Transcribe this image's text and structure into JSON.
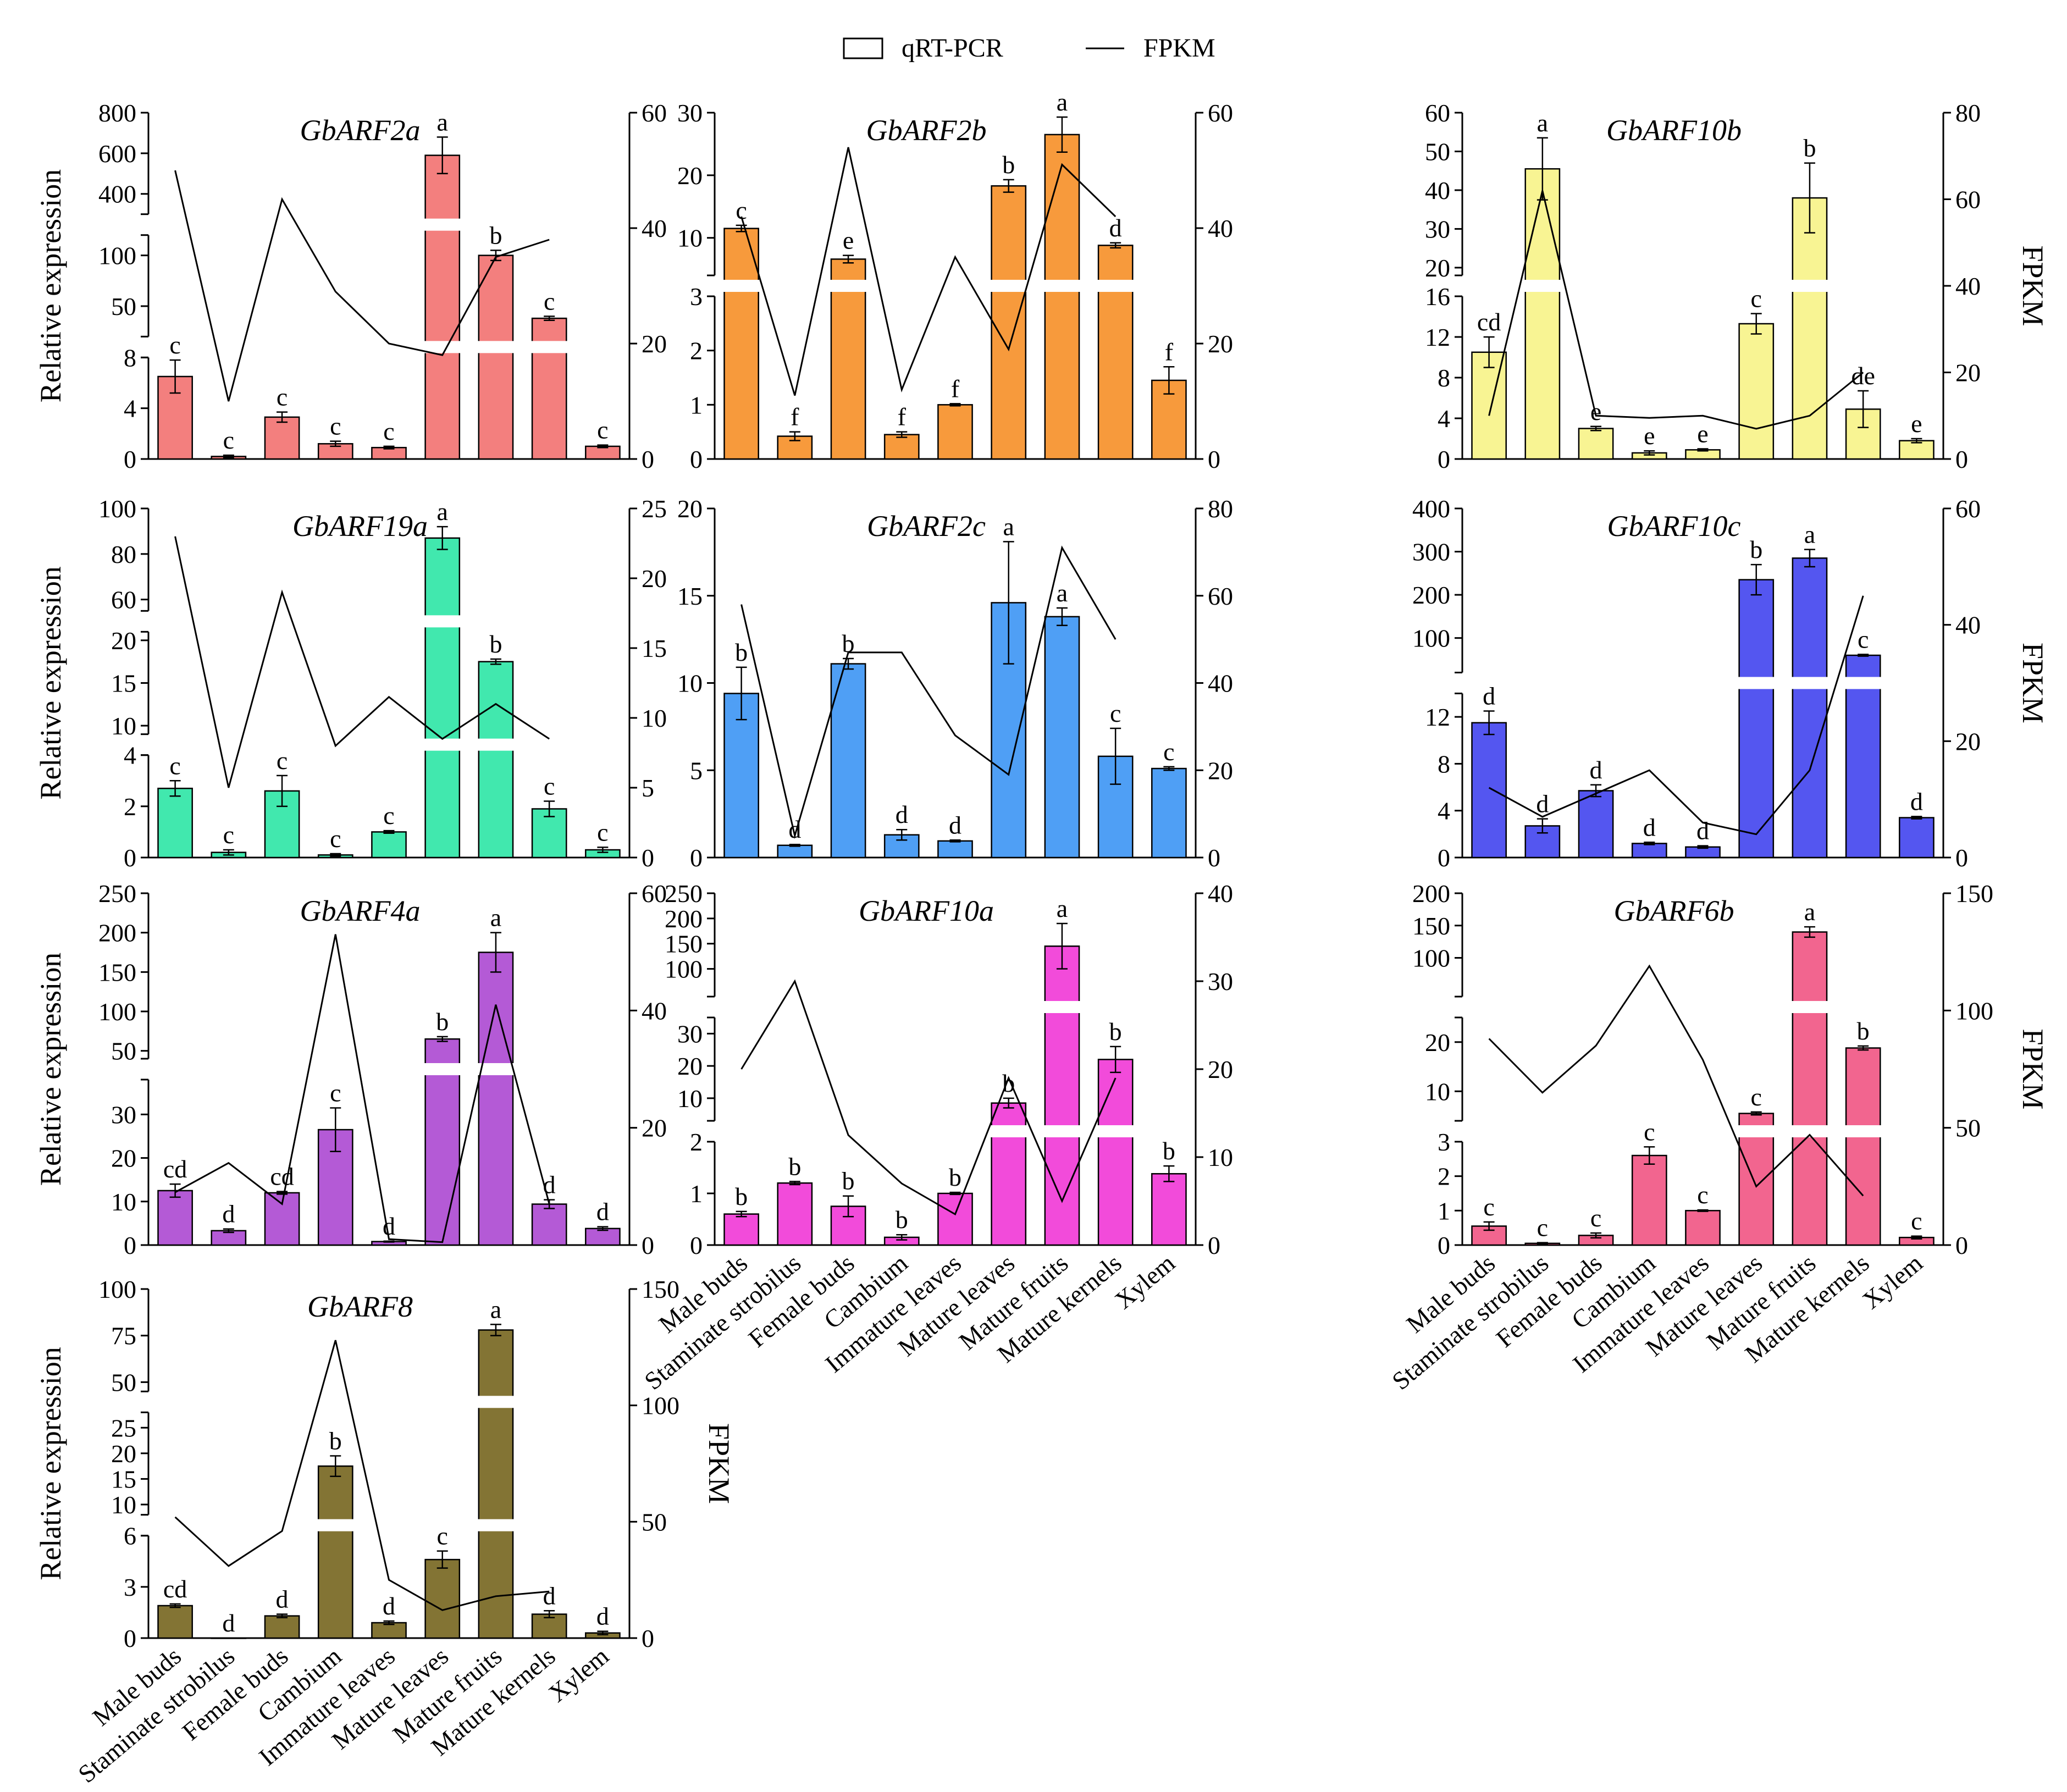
{
  "legend": {
    "bar_label": "qRT-PCR",
    "line_label": "FPKM"
  },
  "colors": {
    "GbARF2a": "#F37F7E",
    "GbARF2b": "#F79A3C",
    "GbARF10b": "#F8F493",
    "GbARF19a": "#41E8AE",
    "GbARF2c": "#4F9FF5",
    "GbARF10c": "#5456F0",
    "GbARF4a": "#B45AD6",
    "GbARF10a": "#F24BDA",
    "GbARF6b": "#F2658F",
    "GbARF8": "#837434"
  },
  "chart_data": [
    {
      "type": "bar",
      "title": "GbARF2a",
      "ylabel": "Relative expression",
      "y2label": "",
      "categories": [
        "Male buds",
        "Staminate strobilus",
        "Female buds",
        "Cambium",
        "Immature leaves",
        "Mature leaves",
        "Mature fruits",
        "Mature kernels",
        "Xylem"
      ],
      "values": [
        6.5,
        0.2,
        3.3,
        1.2,
        0.9,
        590,
        100,
        38,
        1.0
      ],
      "errors": [
        1.3,
        0.1,
        0.4,
        0.2,
        0.1,
        90,
        5,
        2,
        0.1
      ],
      "letters": [
        "c",
        "c",
        "c",
        "c",
        "c",
        "a",
        "b",
        "c",
        "c"
      ],
      "fpkm": [
        50,
        10,
        45,
        29,
        20,
        18,
        35,
        38,
        null
      ],
      "y2lim": [
        0,
        60
      ],
      "y2ticks": [
        0,
        20,
        40,
        60
      ],
      "segments": [
        {
          "lim": [
            0,
            8
          ],
          "ticks": [
            0,
            4,
            8
          ]
        },
        {
          "lim": [
            20,
            120
          ],
          "ticks": [
            50,
            100
          ]
        },
        {
          "lim": [
            300,
            800
          ],
          "ticks": [
            400,
            600,
            800
          ]
        }
      ]
    },
    {
      "type": "bar",
      "title": "GbARF2b",
      "ylabel": "",
      "y2label": "",
      "categories": [
        "Male buds",
        "Staminate strobilus",
        "Female buds",
        "Cambium",
        "Immature leaves",
        "Mature leaves",
        "Mature fruits",
        "Mature kernels",
        "Xylem"
      ],
      "values": [
        11.5,
        0.42,
        6.6,
        0.45,
        1.0,
        18.3,
        26.5,
        8.8,
        1.45
      ],
      "errors": [
        0.5,
        0.08,
        0.6,
        0.05,
        0.02,
        1.0,
        2.8,
        0.4,
        0.25
      ],
      "letters": [
        "c",
        "f",
        "e",
        "f",
        "f",
        "b",
        "a",
        "d",
        "f"
      ],
      "fpkm": [
        42,
        11,
        54,
        12,
        35,
        19,
        51,
        42,
        null
      ],
      "y2lim": [
        0,
        60
      ],
      "y2ticks": [
        0,
        20,
        40,
        60
      ],
      "segments": [
        {
          "lim": [
            0,
            3
          ],
          "ticks": [
            0,
            1,
            2,
            3
          ]
        },
        {
          "lim": [
            4,
            30
          ],
          "ticks": [
            10,
            20,
            30
          ]
        }
      ]
    },
    {
      "type": "bar",
      "title": "GbARF10b",
      "ylabel": "",
      "y2label": "FPKM",
      "categories": [
        "Male buds",
        "Staminate strobilus",
        "Female buds",
        "Cambium",
        "Immature leaves",
        "Mature leaves",
        "Mature fruits",
        "Mature kernels",
        "Xylem"
      ],
      "values": [
        10.5,
        45.5,
        3.0,
        0.6,
        0.9,
        13.3,
        38,
        4.9,
        1.8
      ],
      "errors": [
        1.5,
        8,
        0.2,
        0.2,
        0.1,
        1.0,
        9,
        1.8,
        0.2
      ],
      "letters": [
        "cd",
        "a",
        "e",
        "e",
        "e",
        "c",
        "b",
        "de",
        "e"
      ],
      "fpkm": [
        10,
        62,
        10,
        9.5,
        10,
        7,
        10,
        20,
        null
      ],
      "y2lim": [
        0,
        80
      ],
      "y2ticks": [
        0,
        20,
        40,
        60,
        80
      ],
      "segments": [
        {
          "lim": [
            0,
            16
          ],
          "ticks": [
            0,
            4,
            8,
            12,
            16
          ]
        },
        {
          "lim": [
            18,
            60
          ],
          "ticks": [
            20,
            30,
            40,
            50,
            60
          ]
        }
      ]
    },
    {
      "type": "bar",
      "title": "GbARF19a",
      "ylabel": "Relative expression",
      "y2label": "",
      "categories": [
        "Male buds",
        "Staminate strobilus",
        "Female buds",
        "Cambium",
        "Immature leaves",
        "Mature leaves",
        "Mature fruits",
        "Mature kernels",
        "Xylem"
      ],
      "values": [
        2.7,
        0.2,
        2.6,
        0.1,
        1.0,
        87,
        17.5,
        1.9,
        0.3
      ],
      "errors": [
        0.3,
        0.1,
        0.6,
        0.05,
        0.05,
        5,
        0.3,
        0.3,
        0.1
      ],
      "letters": [
        "c",
        "c",
        "c",
        "c",
        "c",
        "a",
        "b",
        "c",
        "c"
      ],
      "fpkm": [
        23,
        5,
        19,
        8,
        11.5,
        8.5,
        11,
        8.5,
        null
      ],
      "y2lim": [
        0,
        25
      ],
      "y2ticks": [
        0,
        5,
        10,
        15,
        20,
        25
      ],
      "segments": [
        {
          "lim": [
            0,
            4
          ],
          "ticks": [
            0,
            2,
            4
          ]
        },
        {
          "lim": [
            9,
            21
          ],
          "ticks": [
            10,
            15,
            20
          ]
        },
        {
          "lim": [
            55,
            100
          ],
          "ticks": [
            60,
            80,
            100
          ]
        }
      ]
    },
    {
      "type": "bar",
      "title": "GbARF2c",
      "ylabel": "",
      "y2label": "",
      "categories": [
        "Male buds",
        "Staminate strobilus",
        "Female buds",
        "Cambium",
        "Immature leaves",
        "Mature leaves",
        "Mature fruits",
        "Mature kernels",
        "Xylem"
      ],
      "values": [
        9.4,
        0.7,
        11.1,
        1.3,
        0.95,
        14.6,
        13.8,
        5.8,
        5.1
      ],
      "errors": [
        1.5,
        0.05,
        0.3,
        0.3,
        0.05,
        3.5,
        0.5,
        1.6,
        0.1
      ],
      "letters": [
        "b",
        "d",
        "b",
        "d",
        "d",
        "a",
        "a",
        "c",
        "c"
      ],
      "fpkm": [
        58,
        5,
        47,
        47,
        28,
        19,
        71,
        50,
        null
      ],
      "y2lim": [
        0,
        80
      ],
      "y2ticks": [
        0,
        20,
        40,
        60,
        80
      ],
      "segments": [
        {
          "lim": [
            0,
            20
          ],
          "ticks": [
            0,
            5,
            10,
            15,
            20
          ]
        }
      ]
    },
    {
      "type": "bar",
      "title": "GbARF10c",
      "ylabel": "",
      "y2label": "FPKM",
      "categories": [
        "Male buds",
        "Staminate strobilus",
        "Female buds",
        "Cambium",
        "Immature leaves",
        "Mature leaves",
        "Mature fruits",
        "Mature kernels",
        "Xylem"
      ],
      "values": [
        11.5,
        2.7,
        5.7,
        1.2,
        0.9,
        235,
        285,
        60,
        3.4
      ],
      "errors": [
        1.0,
        0.6,
        0.5,
        0.1,
        0.1,
        35,
        20,
        2,
        0.1
      ],
      "letters": [
        "d",
        "d",
        "d",
        "d",
        "d",
        "b",
        "a",
        "c",
        "d"
      ],
      "fpkm": [
        12,
        7,
        11,
        15,
        6,
        4,
        15,
        45,
        null
      ],
      "y2lim": [
        0,
        60
      ],
      "y2ticks": [
        0,
        20,
        40,
        60
      ],
      "segments": [
        {
          "lim": [
            0,
            14
          ],
          "ticks": [
            0,
            4,
            8,
            12
          ]
        },
        {
          "lim": [
            20,
            400
          ],
          "ticks": [
            100,
            200,
            300,
            400
          ]
        }
      ]
    },
    {
      "type": "bar",
      "title": "GbARF4a",
      "ylabel": "Relative expression",
      "y2label": "",
      "categories": [
        "Male buds",
        "Staminate strobilus",
        "Female buds",
        "Cambium",
        "Immature leaves",
        "Mature leaves",
        "Mature fruits",
        "Mature kernels",
        "Xylem"
      ],
      "values": [
        12.5,
        3.3,
        12.0,
        26.5,
        0.8,
        65,
        175,
        9.4,
        3.8
      ],
      "errors": [
        1.5,
        0.4,
        0.3,
        5,
        0.1,
        3,
        25,
        1.0,
        0.4
      ],
      "letters": [
        "cd",
        "d",
        "cd",
        "c",
        "d",
        "b",
        "a",
        "d",
        "d"
      ],
      "fpkm": [
        9,
        14,
        7,
        53,
        1,
        0.5,
        41,
        7,
        null
      ],
      "y2lim": [
        0,
        60
      ],
      "y2ticks": [
        0,
        20,
        40,
        60
      ],
      "segments": [
        {
          "lim": [
            0,
            38
          ],
          "ticks": [
            0,
            10,
            20,
            30
          ]
        },
        {
          "lim": [
            40,
            250
          ],
          "ticks": [
            50,
            100,
            150,
            200,
            250
          ]
        }
      ]
    },
    {
      "type": "bar",
      "title": "GbARF10a",
      "ylabel": "",
      "y2label": "",
      "categories": [
        "Male buds",
        "Staminate strobilus",
        "Female buds",
        "Cambium",
        "Immature leaves",
        "Mature leaves",
        "Mature fruits",
        "Mature kernels",
        "Xylem"
      ],
      "values": [
        0.6,
        1.2,
        0.75,
        0.15,
        1.0,
        8.5,
        145,
        22,
        1.38
      ],
      "errors": [
        0.05,
        0.03,
        0.2,
        0.05,
        0.02,
        1.5,
        45,
        4,
        0.15
      ],
      "letters": [
        "b",
        "b",
        "b",
        "b",
        "b",
        "b",
        "a",
        "b",
        "b"
      ],
      "fpkm": [
        20,
        30,
        12.5,
        7,
        3.5,
        19,
        5,
        19,
        null
      ],
      "y2lim": [
        0,
        40
      ],
      "y2ticks": [
        0,
        10,
        20,
        30,
        40
      ],
      "segments": [
        {
          "lim": [
            0,
            2
          ],
          "ticks": [
            0,
            1,
            2
          ]
        },
        {
          "lim": [
            3,
            35
          ],
          "ticks": [
            10,
            20,
            30
          ]
        },
        {
          "lim": [
            45,
            250
          ],
          "ticks": [
            100,
            150,
            200,
            250
          ]
        }
      ]
    },
    {
      "type": "bar",
      "title": "GbARF6b",
      "ylabel": "",
      "y2label": "FPKM",
      "categories": [
        "Male buds",
        "Staminate strobilus",
        "Female buds",
        "Cambium",
        "Immature leaves",
        "Mature leaves",
        "Mature fruits",
        "Mature kernels",
        "Xylem"
      ],
      "values": [
        0.55,
        0.05,
        0.28,
        2.6,
        1.0,
        5.5,
        140,
        18.8,
        0.22
      ],
      "errors": [
        0.12,
        0.02,
        0.07,
        0.25,
        0.02,
        0.3,
        8,
        0.4,
        0.04
      ],
      "letters": [
        "c",
        "c",
        "c",
        "c",
        "c",
        "c",
        "a",
        "b",
        "c"
      ],
      "fpkm": [
        88,
        65,
        85,
        119,
        79,
        25,
        47,
        21,
        null
      ],
      "y2lim": [
        0,
        150
      ],
      "y2ticks": [
        0,
        50,
        100,
        150
      ],
      "segments": [
        {
          "lim": [
            0,
            3
          ],
          "ticks": [
            0,
            1,
            2,
            3
          ]
        },
        {
          "lim": [
            4,
            25
          ],
          "ticks": [
            10,
            20
          ]
        },
        {
          "lim": [
            40,
            200
          ],
          "ticks": [
            100,
            150,
            200
          ]
        }
      ]
    },
    {
      "type": "bar",
      "title": "GbARF8",
      "ylabel": "Relative expression",
      "y2label": "FPKM",
      "categories": [
        "Male buds",
        "Staminate strobilus",
        "Female buds",
        "Cambium",
        "Immature leaves",
        "Mature leaves",
        "Mature fruits",
        "Mature kernels",
        "Xylem"
      ],
      "values": [
        1.9,
        0.0,
        1.3,
        17.5,
        0.9,
        4.6,
        78,
        1.4,
        0.3
      ],
      "errors": [
        0.1,
        0.0,
        0.1,
        2.0,
        0.1,
        0.5,
        3,
        0.2,
        0.1
      ],
      "letters": [
        "cd",
        "d",
        "d",
        "b",
        "d",
        "c",
        "a",
        "d",
        "d"
      ],
      "fpkm": [
        52,
        31,
        46,
        128,
        25,
        12,
        18,
        20,
        null
      ],
      "y2lim": [
        0,
        150
      ],
      "y2ticks": [
        0,
        50,
        100,
        150
      ],
      "segments": [
        {
          "lim": [
            0,
            6
          ],
          "ticks": [
            0,
            3,
            6
          ]
        },
        {
          "lim": [
            8,
            28
          ],
          "ticks": [
            10,
            15,
            20,
            25
          ]
        },
        {
          "lim": [
            45,
            100
          ],
          "ticks": [
            50,
            75,
            100
          ]
        }
      ]
    }
  ]
}
